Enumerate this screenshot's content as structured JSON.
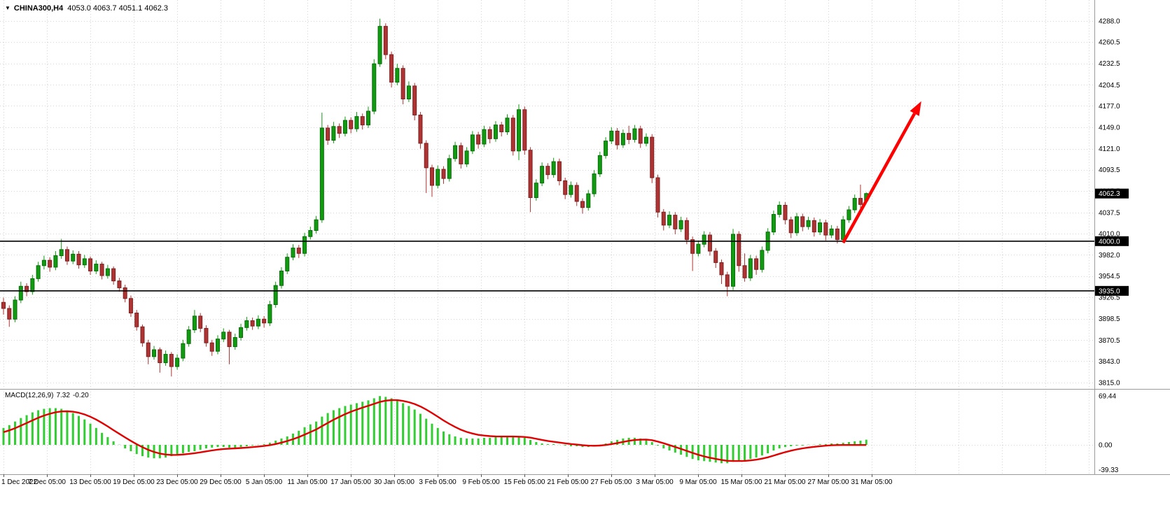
{
  "window": {
    "symbol_period": "CHINA300,H4",
    "ohlc_text": "4053.0 4063.7 4051.1 4062.3",
    "open": "4053.0",
    "high": "4063.7",
    "low": "4051.1",
    "close": "4062.3"
  },
  "chart_data": {
    "type": "candlestick",
    "symbol": "CHINA300",
    "timeframe": "H4",
    "grid": true,
    "legend_position": "top-left",
    "colors": {
      "bg": "#ffffff",
      "grid": "#d4d4d4",
      "up": "#119b11",
      "up_stroke": "#0a6b0a",
      "down": "#b03333",
      "down_stroke": "#7a2222",
      "hist": "#32cd32",
      "signal_line": "#e00000",
      "level_line": "#000000",
      "arrow": "#ff0000",
      "tag_bg": "#000000",
      "tag_text": "#ffffff"
    },
    "price_axis": {
      "side": "right",
      "ticks": [
        "4288.0",
        "4260.5",
        "4232.5",
        "4204.5",
        "4177.0",
        "4149.0",
        "4121.0",
        "4093.5",
        "4065.5",
        "4037.5",
        "4010.0",
        "3982.0",
        "3954.5",
        "3926.5",
        "3898.5",
        "3870.5",
        "3843.0",
        "3815.0"
      ]
    },
    "time_axis": {
      "labels": [
        "1 Dec 2022",
        "7 Dec 05:00",
        "13 Dec 05:00",
        "19 Dec 05:00",
        "23 Dec 05:00",
        "29 Dec 05:00",
        "5 Jan 05:00",
        "11 Jan 05:00",
        "17 Jan 05:00",
        "30 Jan 05:00",
        "3 Feb 05:00",
        "9 Feb 05:00",
        "15 Feb 05:00",
        "21 Feb 05:00",
        "27 Feb 05:00",
        "3 Mar 05:00",
        "9 Mar 05:00",
        "15 Mar 05:00",
        "21 Mar 05:00",
        "27 Mar 05:00",
        "31 Mar 05:00"
      ]
    },
    "current_price": {
      "value": 4062.3,
      "label": "4062.3"
    },
    "levels": [
      {
        "value": 4000.0,
        "label": "4000.0",
        "type": "horizontal-line"
      },
      {
        "value": 3935.0,
        "label": "3935.0",
        "type": "horizontal-line"
      }
    ],
    "annotations": [
      {
        "type": "arrow",
        "color": "#ff0000",
        "from": {
          "bar": 145,
          "price": 3998
        },
        "to": {
          "bar": 158.5,
          "price": 4183
        }
      }
    ],
    "candles": [
      [
        3920,
        3926,
        3904,
        3912
      ],
      [
        3912,
        3916,
        3888,
        3898
      ],
      [
        3898,
        3928,
        3894,
        3923
      ],
      [
        3923,
        3947,
        3919,
        3941
      ],
      [
        3941,
        3945,
        3928,
        3934
      ],
      [
        3934,
        3956,
        3930,
        3951
      ],
      [
        3951,
        3973,
        3947,
        3968
      ],
      [
        3968,
        3981,
        3963,
        3975
      ],
      [
        3975,
        3979,
        3960,
        3966
      ],
      [
        3966,
        3987,
        3962,
        3981
      ],
      [
        3981,
        4003,
        3977,
        3989
      ],
      [
        3989,
        3993,
        3969,
        3974
      ],
      [
        3974,
        3988,
        3970,
        3983
      ],
      [
        3983,
        3987,
        3964,
        3969
      ],
      [
        3969,
        3982,
        3965,
        3977
      ],
      [
        3977,
        3980,
        3956,
        3961
      ],
      [
        3961,
        3975,
        3957,
        3970
      ],
      [
        3970,
        3973,
        3950,
        3955
      ],
      [
        3955,
        3969,
        3951,
        3964
      ],
      [
        3964,
        3967,
        3943,
        3948
      ],
      [
        3948,
        3952,
        3934,
        3939
      ],
      [
        3939,
        3943,
        3920,
        3925
      ],
      [
        3925,
        3929,
        3901,
        3906
      ],
      [
        3906,
        3910,
        3883,
        3888
      ],
      [
        3888,
        3891,
        3862,
        3867
      ],
      [
        3867,
        3871,
        3839,
        3849
      ],
      [
        3849,
        3863,
        3845,
        3858
      ],
      [
        3858,
        3861,
        3828,
        3841
      ],
      [
        3841,
        3857,
        3837,
        3852
      ],
      [
        3852,
        3855,
        3823,
        3836
      ],
      [
        3836,
        3852,
        3832,
        3847
      ],
      [
        3847,
        3871,
        3843,
        3866
      ],
      [
        3866,
        3889,
        3862,
        3884
      ],
      [
        3884,
        3910,
        3880,
        3902
      ],
      [
        3902,
        3906,
        3881,
        3886
      ],
      [
        3886,
        3890,
        3862,
        3867
      ],
      [
        3867,
        3871,
        3850,
        3856
      ],
      [
        3856,
        3877,
        3852,
        3872
      ],
      [
        3872,
        3886,
        3868,
        3881
      ],
      [
        3881,
        3884,
        3839,
        3862
      ],
      [
        3862,
        3879,
        3858,
        3874
      ],
      [
        3874,
        3892,
        3870,
        3887
      ],
      [
        3887,
        3901,
        3883,
        3896
      ],
      [
        3896,
        3900,
        3884,
        3889
      ],
      [
        3889,
        3903,
        3885,
        3898
      ],
      [
        3898,
        3902,
        3887,
        3893
      ],
      [
        3893,
        3922,
        3889,
        3917
      ],
      [
        3917,
        3947,
        3913,
        3942
      ],
      [
        3942,
        3966,
        3938,
        3961
      ],
      [
        3961,
        3984,
        3957,
        3979
      ],
      [
        3979,
        3996,
        3975,
        3991
      ],
      [
        3991,
        3995,
        3978,
        3984
      ],
      [
        3984,
        4011,
        3980,
        4006
      ],
      [
        4006,
        4019,
        4002,
        4014
      ],
      [
        4014,
        4033,
        4010,
        4028
      ],
      [
        4028,
        4168,
        4024,
        4148
      ],
      [
        4148,
        4152,
        4126,
        4132
      ],
      [
        4132,
        4156,
        4128,
        4150
      ],
      [
        4150,
        4154,
        4135,
        4141
      ],
      [
        4141,
        4163,
        4137,
        4158
      ],
      [
        4158,
        4162,
        4141,
        4147
      ],
      [
        4147,
        4169,
        4143,
        4163
      ],
      [
        4163,
        4167,
        4146,
        4152
      ],
      [
        4152,
        4176,
        4148,
        4170
      ],
      [
        4170,
        4238,
        4166,
        4232
      ],
      [
        4232,
        4291,
        4228,
        4281
      ],
      [
        4281,
        4285,
        4238,
        4244
      ],
      [
        4244,
        4248,
        4201,
        4208
      ],
      [
        4208,
        4232,
        4204,
        4226
      ],
      [
        4226,
        4230,
        4179,
        4186
      ],
      [
        4186,
        4209,
        4182,
        4203
      ],
      [
        4203,
        4207,
        4158,
        4165
      ],
      [
        4165,
        4169,
        4121,
        4128
      ],
      [
        4128,
        4132,
        4063,
        4096
      ],
      [
        4096,
        4100,
        4058,
        4073
      ],
      [
        4073,
        4099,
        4069,
        4094
      ],
      [
        4094,
        4098,
        4075,
        4082
      ],
      [
        4082,
        4113,
        4078,
        4108
      ],
      [
        4108,
        4130,
        4104,
        4125
      ],
      [
        4125,
        4129,
        4095,
        4101
      ],
      [
        4101,
        4123,
        4097,
        4118
      ],
      [
        4118,
        4144,
        4114,
        4139
      ],
      [
        4139,
        4143,
        4121,
        4127
      ],
      [
        4127,
        4151,
        4123,
        4146
      ],
      [
        4146,
        4150,
        4128,
        4134
      ],
      [
        4134,
        4157,
        4130,
        4152
      ],
      [
        4152,
        4156,
        4137,
        4143
      ],
      [
        4143,
        4166,
        4139,
        4161
      ],
      [
        4161,
        4165,
        4112,
        4118
      ],
      [
        4118,
        4179,
        4106,
        4172
      ],
      [
        4172,
        4176,
        4113,
        4119
      ],
      [
        4119,
        4123,
        4038,
        4057
      ],
      [
        4057,
        4081,
        4053,
        4076
      ],
      [
        4076,
        4103,
        4072,
        4098
      ],
      [
        4098,
        4102,
        4081,
        4087
      ],
      [
        4087,
        4109,
        4083,
        4104
      ],
      [
        4104,
        4108,
        4073,
        4079
      ],
      [
        4079,
        4083,
        4055,
        4061
      ],
      [
        4061,
        4078,
        4057,
        4073
      ],
      [
        4073,
        4077,
        4046,
        4052
      ],
      [
        4052,
        4056,
        4036,
        4044
      ],
      [
        4044,
        4067,
        4040,
        4062
      ],
      [
        4062,
        4093,
        4058,
        4088
      ],
      [
        4088,
        4117,
        4084,
        4112
      ],
      [
        4112,
        4136,
        4108,
        4131
      ],
      [
        4131,
        4149,
        4127,
        4144
      ],
      [
        4144,
        4148,
        4120,
        4126
      ],
      [
        4126,
        4146,
        4122,
        4141
      ],
      [
        4141,
        4151,
        4127,
        4133
      ],
      [
        4133,
        4152,
        4129,
        4147
      ],
      [
        4147,
        4151,
        4122,
        4128
      ],
      [
        4128,
        4141,
        4124,
        4136
      ],
      [
        4136,
        4140,
        4076,
        4083
      ],
      [
        4083,
        4087,
        4031,
        4038
      ],
      [
        4038,
        4042,
        4014,
        4021
      ],
      [
        4021,
        4039,
        4017,
        4034
      ],
      [
        4034,
        4038,
        4009,
        4016
      ],
      [
        4016,
        4032,
        4012,
        4027
      ],
      [
        4027,
        4031,
        3996,
        4002
      ],
      [
        4002,
        4006,
        3961,
        3984
      ],
      [
        3984,
        4001,
        3980,
        3996
      ],
      [
        3996,
        4013,
        3992,
        4008
      ],
      [
        4008,
        4012,
        3981,
        3987
      ],
      [
        3987,
        3991,
        3965,
        3972
      ],
      [
        3972,
        3976,
        3944,
        3956
      ],
      [
        3956,
        3960,
        3928,
        3941
      ],
      [
        3941,
        4016,
        3936,
        4009
      ],
      [
        4009,
        4013,
        3960,
        3968
      ],
      [
        3968,
        3984,
        3947,
        3952
      ],
      [
        3952,
        3982,
        3948,
        3977
      ],
      [
        3977,
        3981,
        3956,
        3963
      ],
      [
        3963,
        3993,
        3959,
        3988
      ],
      [
        3988,
        4017,
        3984,
        4012
      ],
      [
        4012,
        4040,
        4008,
        4035
      ],
      [
        4035,
        4052,
        4031,
        4047
      ],
      [
        4047,
        4051,
        4022,
        4028
      ],
      [
        4028,
        4032,
        4004,
        4011
      ],
      [
        4011,
        4037,
        4007,
        4032
      ],
      [
        4032,
        4036,
        4013,
        4019
      ],
      [
        4019,
        4032,
        4015,
        4027
      ],
      [
        4027,
        4031,
        4006,
        4012
      ],
      [
        4012,
        4029,
        4008,
        4024
      ],
      [
        4024,
        4028,
        4001,
        4008
      ],
      [
        4008,
        4021,
        4004,
        4016
      ],
      [
        4016,
        4020,
        3997,
        4002
      ],
      [
        4002,
        4033,
        3998,
        4028
      ],
      [
        4028,
        4046,
        4024,
        4041
      ],
      [
        4041,
        4061,
        4037,
        4056
      ],
      [
        4056,
        4074,
        4043,
        4048
      ],
      [
        4053.0,
        4063.7,
        4051.1,
        4062.3
      ]
    ],
    "indicator": {
      "name": "MACD(12,26,9)",
      "main_value": "7.32",
      "signal_value": "-0.20",
      "axis_ticks": [
        "69.44",
        "0.00",
        "-39.33"
      ],
      "histogram": [
        24,
        28,
        33,
        38,
        42,
        46,
        49,
        51,
        52,
        52,
        51,
        48,
        45,
        41,
        36,
        30,
        24,
        17,
        11,
        5,
        0,
        -5,
        -9,
        -13,
        -16,
        -18,
        -19,
        -19,
        -18,
        -16,
        -14,
        -12,
        -10,
        -9,
        -7,
        -5,
        -4,
        -3,
        -3,
        -4,
        -4,
        -3,
        -2,
        -1,
        0,
        1,
        3,
        6,
        9,
        12,
        16,
        20,
        25,
        29,
        33,
        40,
        45,
        49,
        52,
        55,
        57,
        59,
        61,
        63,
        66,
        69,
        68,
        66,
        63,
        59,
        55,
        50,
        44,
        37,
        30,
        24,
        19,
        15,
        12,
        10,
        9,
        9,
        9,
        10,
        10,
        11,
        11,
        12,
        11,
        11,
        10,
        7,
        4,
        2,
        1,
        1,
        0,
        -1,
        -2,
        -2,
        -3,
        -3,
        -2,
        0,
        2,
        5,
        7,
        9,
        10,
        10,
        9,
        8,
        4,
        -1,
        -5,
        -8,
        -11,
        -14,
        -17,
        -20,
        -22,
        -23,
        -24,
        -25,
        -26,
        -26,
        -24,
        -23,
        -22,
        -20,
        -18,
        -15,
        -12,
        -8,
        -5,
        -3,
        -2,
        -1,
        -1,
        0,
        0,
        1,
        1,
        2,
        2,
        3,
        4,
        5,
        6,
        7.32
      ],
      "signal": [
        18,
        20.5,
        23.6,
        27.2,
        30.9,
        34.7,
        38.3,
        41.5,
        44.1,
        46.1,
        47.3,
        47.5,
        46.9,
        45.4,
        43.1,
        39.8,
        35.8,
        31.1,
        26.1,
        20.8,
        15.6,
        10.5,
        5.6,
        0.9,
        -3.3,
        -7,
        -10,
        -12.3,
        -13.7,
        -14.3,
        -14.2,
        -13.7,
        -12.8,
        -11.8,
        -10.6,
        -9.2,
        -7.9,
        -6.7,
        -5.8,
        -5.3,
        -5,
        -4.5,
        -3.9,
        -3.2,
        -2.4,
        -1.6,
        -0.4,
        1.2,
        3.2,
        5.4,
        8,
        11,
        14.5,
        18.1,
        21.8,
        26.4,
        31,
        35.5,
        39.6,
        43.5,
        46.9,
        49.9,
        52.7,
        55.3,
        58,
        60.8,
        62.6,
        63.4,
        63.3,
        62.2,
        60.4,
        57.8,
        54.4,
        50,
        45,
        39.8,
        34.6,
        29.7,
        25.3,
        21.4,
        18.3,
        16,
        14.2,
        13.2,
        12.4,
        12,
        11.8,
        11.8,
        11.8,
        11.6,
        11.2,
        10.2,
        8.6,
        7,
        5.5,
        4.4,
        3.3,
        2.2,
        1.2,
        0.4,
        -0.5,
        -1.1,
        -1.3,
        -1,
        -0.2,
        1.1,
        2.6,
        4.2,
        5.7,
        6.8,
        7.3,
        7.5,
        6.6,
        4.7,
        2.3,
        -0.3,
        -3,
        -5.7,
        -8.5,
        -11.4,
        -14.1,
        -16.3,
        -18.2,
        -19.9,
        -21.4,
        -22.6,
        -22.9,
        -22.9,
        -22.7,
        -22,
        -21,
        -19.5,
        -17.6,
        -15.2,
        -12.7,
        -10.3,
        -8.2,
        -6.4,
        -5,
        -3.8,
        -2.8,
        -1.9,
        -1.2,
        -0.6,
        -0.3,
        -0.2,
        -0.2,
        -0.2,
        -0.2,
        -0.2
      ]
    }
  }
}
